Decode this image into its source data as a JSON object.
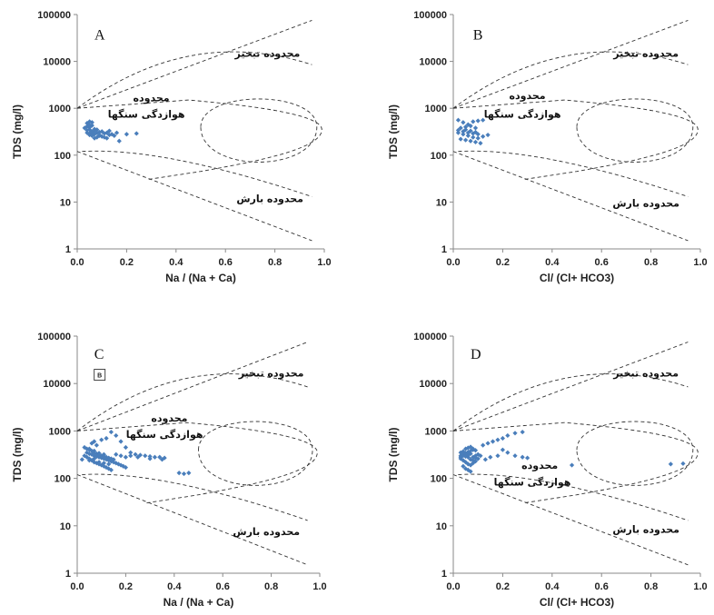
{
  "chart_data": [
    {
      "panel": "A",
      "type": "scatter",
      "xlabel": "Na / (Na + Ca)",
      "ylabel": "TDS (mg/l)",
      "xlim": [
        0,
        1
      ],
      "ylim": [
        1,
        100000
      ],
      "yscale": "log",
      "xticks": [
        "0.0",
        "0.2",
        "0.4",
        "0.6",
        "0.8",
        "1.0"
      ],
      "yticks": [
        "1",
        "10",
        "100",
        "1000",
        "10000",
        "100000"
      ],
      "zone_labels": {
        "evaporation": "محدوده تبخیر",
        "rock_line1": "محدوده",
        "rock_line2": "هوازدگی سنگها",
        "precipitation": "محدوده بارش"
      },
      "points": [
        [
          0.04,
          480
        ],
        [
          0.05,
          520
        ],
        [
          0.06,
          430
        ],
        [
          0.05,
          390
        ],
        [
          0.07,
          360
        ],
        [
          0.04,
          340
        ],
        [
          0.06,
          320
        ],
        [
          0.08,
          300
        ],
        [
          0.05,
          290
        ],
        [
          0.07,
          280
        ],
        [
          0.09,
          270
        ],
        [
          0.06,
          260
        ],
        [
          0.1,
          250
        ],
        [
          0.08,
          240
        ],
        [
          0.12,
          230
        ],
        [
          0.04,
          410
        ],
        [
          0.05,
          350
        ],
        [
          0.07,
          330
        ],
        [
          0.09,
          310
        ],
        [
          0.11,
          290
        ],
        [
          0.13,
          270
        ],
        [
          0.15,
          260
        ],
        [
          0.17,
          200
        ],
        [
          0.2,
          280
        ],
        [
          0.24,
          290
        ],
        [
          0.06,
          300
        ],
        [
          0.08,
          350
        ],
        [
          0.1,
          320
        ],
        [
          0.12,
          300
        ],
        [
          0.14,
          280
        ],
        [
          0.03,
          380
        ],
        [
          0.05,
          440
        ],
        [
          0.06,
          500
        ],
        [
          0.04,
          300
        ],
        [
          0.09,
          260
        ],
        [
          0.11,
          240
        ],
        [
          0.07,
          230
        ],
        [
          0.05,
          270
        ],
        [
          0.16,
          300
        ],
        [
          0.13,
          330
        ]
      ]
    },
    {
      "panel": "B",
      "type": "scatter",
      "xlabel": "Cl/ (Cl+ HCO3)",
      "ylabel": "TDS (mg/l)",
      "xlim": [
        0,
        1
      ],
      "ylim": [
        1,
        100000
      ],
      "yscale": "log",
      "xticks": [
        "0.0",
        "0.2",
        "0.4",
        "0.6",
        "0.8",
        "1.0"
      ],
      "yticks": [
        "1",
        "10",
        "100",
        "1000",
        "10000",
        "100000"
      ],
      "zone_labels": {
        "evaporation": "محدوده تبخیر",
        "rock_line1": "محدوده",
        "rock_line2": "هوازدگی سنگها",
        "precipitation": "محدوده بارش"
      },
      "points": [
        [
          0.02,
          560
        ],
        [
          0.04,
          500
        ],
        [
          0.06,
          450
        ],
        [
          0.08,
          520
        ],
        [
          0.1,
          540
        ],
        [
          0.12,
          560
        ],
        [
          0.03,
          380
        ],
        [
          0.05,
          350
        ],
        [
          0.07,
          330
        ],
        [
          0.09,
          310
        ],
        [
          0.02,
          300
        ],
        [
          0.04,
          280
        ],
        [
          0.06,
          260
        ],
        [
          0.08,
          240
        ],
        [
          0.1,
          230
        ],
        [
          0.12,
          250
        ],
        [
          0.14,
          270
        ],
        [
          0.03,
          220
        ],
        [
          0.05,
          210
        ],
        [
          0.07,
          200
        ],
        [
          0.09,
          190
        ],
        [
          0.11,
          180
        ],
        [
          0.02,
          340
        ],
        [
          0.04,
          320
        ],
        [
          0.06,
          300
        ],
        [
          0.08,
          290
        ],
        [
          0.1,
          280
        ],
        [
          0.05,
          400
        ],
        [
          0.07,
          420
        ],
        [
          0.09,
          380
        ]
      ]
    },
    {
      "panel": "C",
      "type": "scatter",
      "xlabel": "Na / (Na + Ca)",
      "ylabel": "TDS (mg/l)",
      "xlim": [
        0,
        1
      ],
      "ylim": [
        1,
        100000
      ],
      "yscale": "log",
      "xticks": [
        "0.0",
        "0.2",
        "0.4",
        "0.6",
        "0.8",
        "1.0"
      ],
      "yticks": [
        "1",
        "10",
        "100",
        "1000",
        "10000",
        "100000"
      ],
      "zone_labels": {
        "evaporation": "محدوده تبخیر",
        "rock_line1": "محدوده",
        "rock_line2": "هوازدگی سنگها",
        "precipitation": "محدوده بارش"
      },
      "legend_marker": "B",
      "points": [
        [
          0.02,
          250
        ],
        [
          0.03,
          450
        ],
        [
          0.04,
          420
        ],
        [
          0.05,
          400
        ],
        [
          0.06,
          380
        ],
        [
          0.07,
          350
        ],
        [
          0.08,
          330
        ],
        [
          0.09,
          310
        ],
        [
          0.1,
          300
        ],
        [
          0.11,
          290
        ],
        [
          0.12,
          280
        ],
        [
          0.13,
          270
        ],
        [
          0.14,
          260
        ],
        [
          0.15,
          250
        ],
        [
          0.03,
          300
        ],
        [
          0.04,
          280
        ],
        [
          0.05,
          260
        ],
        [
          0.06,
          240
        ],
        [
          0.07,
          220
        ],
        [
          0.08,
          210
        ],
        [
          0.09,
          200
        ],
        [
          0.1,
          190
        ],
        [
          0.11,
          180
        ],
        [
          0.12,
          170
        ],
        [
          0.13,
          160
        ],
        [
          0.14,
          150
        ],
        [
          0.04,
          350
        ],
        [
          0.05,
          330
        ],
        [
          0.06,
          320
        ],
        [
          0.07,
          300
        ],
        [
          0.08,
          290
        ],
        [
          0.09,
          280
        ],
        [
          0.1,
          270
        ],
        [
          0.11,
          260
        ],
        [
          0.12,
          250
        ],
        [
          0.13,
          240
        ],
        [
          0.14,
          230
        ],
        [
          0.15,
          220
        ],
        [
          0.16,
          210
        ],
        [
          0.17,
          200
        ],
        [
          0.18,
          190
        ],
        [
          0.19,
          180
        ],
        [
          0.2,
          170
        ],
        [
          0.06,
          550
        ],
        [
          0.07,
          600
        ],
        [
          0.08,
          500
        ],
        [
          0.1,
          650
        ],
        [
          0.12,
          700
        ],
        [
          0.14,
          950
        ],
        [
          0.16,
          800
        ],
        [
          0.18,
          600
        ],
        [
          0.2,
          450
        ],
        [
          0.22,
          350
        ],
        [
          0.24,
          320
        ],
        [
          0.26,
          310
        ],
        [
          0.28,
          300
        ],
        [
          0.3,
          290
        ],
        [
          0.32,
          280
        ],
        [
          0.34,
          280
        ],
        [
          0.36,
          270
        ],
        [
          0.22,
          300
        ],
        [
          0.25,
          280
        ],
        [
          0.3,
          260
        ],
        [
          0.35,
          250
        ],
        [
          0.42,
          130
        ],
        [
          0.44,
          125
        ],
        [
          0.46,
          130
        ],
        [
          0.09,
          220
        ],
        [
          0.11,
          210
        ],
        [
          0.13,
          200
        ],
        [
          0.07,
          260
        ],
        [
          0.05,
          240
        ],
        [
          0.16,
          320
        ],
        [
          0.18,
          300
        ],
        [
          0.2,
          280
        ],
        [
          0.05,
          420
        ],
        [
          0.07,
          380
        ],
        [
          0.09,
          340
        ],
        [
          0.11,
          320
        ]
      ]
    },
    {
      "panel": "D",
      "type": "scatter",
      "xlabel": "Cl/ (Cl+ HCO3)",
      "ylabel": "TDS (mg/l)",
      "xlim": [
        0,
        1
      ],
      "ylim": [
        1,
        100000
      ],
      "yscale": "log",
      "xticks": [
        "0.0",
        "0.2",
        "0.4",
        "0.6",
        "0.8",
        "1.0"
      ],
      "yticks": [
        "1",
        "10",
        "100",
        "1000",
        "10000",
        "100000"
      ],
      "zone_labels": {
        "evaporation": "محدوده تبخیر",
        "rock_line1": "محدوده",
        "rock_line2": "هوازدگی سنگها",
        "precipitation": "محدوده بارش"
      },
      "points": [
        [
          0.03,
          300
        ],
        [
          0.04,
          320
        ],
        [
          0.05,
          340
        ],
        [
          0.06,
          360
        ],
        [
          0.07,
          380
        ],
        [
          0.08,
          400
        ],
        [
          0.09,
          390
        ],
        [
          0.03,
          260
        ],
        [
          0.04,
          240
        ],
        [
          0.05,
          220
        ],
        [
          0.06,
          200
        ],
        [
          0.07,
          190
        ],
        [
          0.08,
          210
        ],
        [
          0.09,
          230
        ],
        [
          0.03,
          350
        ],
        [
          0.04,
          370
        ],
        [
          0.05,
          290
        ],
        [
          0.06,
          310
        ],
        [
          0.07,
          330
        ],
        [
          0.08,
          280
        ],
        [
          0.09,
          270
        ],
        [
          0.1,
          260
        ],
        [
          0.04,
          180
        ],
        [
          0.05,
          160
        ],
        [
          0.06,
          150
        ],
        [
          0.07,
          140
        ],
        [
          0.05,
          420
        ],
        [
          0.06,
          440
        ],
        [
          0.07,
          460
        ],
        [
          0.08,
          420
        ],
        [
          0.1,
          320
        ],
        [
          0.11,
          300
        ],
        [
          0.12,
          500
        ],
        [
          0.14,
          550
        ],
        [
          0.16,
          600
        ],
        [
          0.18,
          650
        ],
        [
          0.2,
          700
        ],
        [
          0.22,
          800
        ],
        [
          0.25,
          900
        ],
        [
          0.28,
          950
        ],
        [
          0.2,
          400
        ],
        [
          0.22,
          350
        ],
        [
          0.25,
          300
        ],
        [
          0.28,
          280
        ],
        [
          0.3,
          270
        ],
        [
          0.18,
          300
        ],
        [
          0.15,
          280
        ],
        [
          0.13,
          250
        ],
        [
          0.48,
          190
        ],
        [
          0.88,
          200
        ],
        [
          0.93,
          205
        ],
        [
          0.03,
          280
        ],
        [
          0.04,
          300
        ],
        [
          0.05,
          320
        ],
        [
          0.06,
          280
        ],
        [
          0.07,
          250
        ],
        [
          0.08,
          240
        ],
        [
          0.09,
          300
        ]
      ]
    }
  ]
}
